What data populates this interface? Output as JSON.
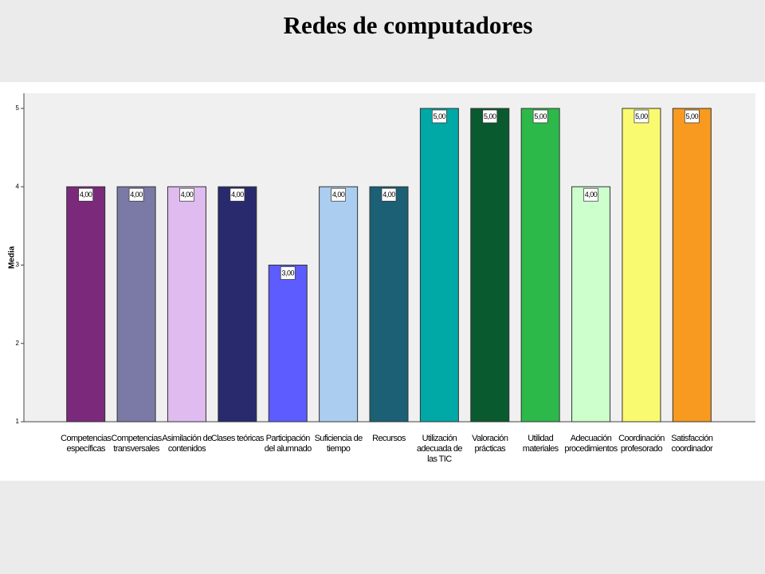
{
  "chart_data": {
    "type": "bar",
    "title": "Redes de computadores",
    "y_label": "Media",
    "categories": [
      [
        "Competencias",
        "específicas"
      ],
      [
        "Competencias",
        "transversales"
      ],
      [
        "Asimilación de",
        "contenidos"
      ],
      [
        "Clases teóricas"
      ],
      [
        "Participación",
        "del alumnado"
      ],
      [
        "Suficiencia de",
        "tiempo"
      ],
      [
        "Recursos"
      ],
      [
        "Utilización",
        "adecuada de",
        "las TIC"
      ],
      [
        "Valoración",
        "prácticas"
      ],
      [
        "Utilidad",
        "materiales"
      ],
      [
        "Adecuación",
        "procedimientos"
      ],
      [
        "Coordinación",
        "profesorado"
      ],
      [
        "Satisfacción",
        "coordinador"
      ]
    ],
    "values": [
      4,
      4,
      4,
      4,
      3,
      4,
      4,
      5,
      5,
      5,
      4,
      5,
      5
    ],
    "value_labels": [
      "4,00",
      "4,00",
      "4,00",
      "4,00",
      "3,00",
      "4,00",
      "4,00",
      "5,00",
      "5,00",
      "5,00",
      "4,00",
      "5,00",
      "5,00"
    ],
    "colors": [
      "#7b2a7b",
      "#7b7aa6",
      "#dfbbef",
      "#292a6e",
      "#5c5cff",
      "#abcdef",
      "#1b6075",
      "#00a8a6",
      "#0a5a2f",
      "#2db84a",
      "#ccffcc",
      "#fafa70",
      "#f79a1f"
    ],
    "ylim": [
      1,
      5
    ],
    "yticks": [
      1,
      2,
      3,
      4,
      5
    ]
  }
}
